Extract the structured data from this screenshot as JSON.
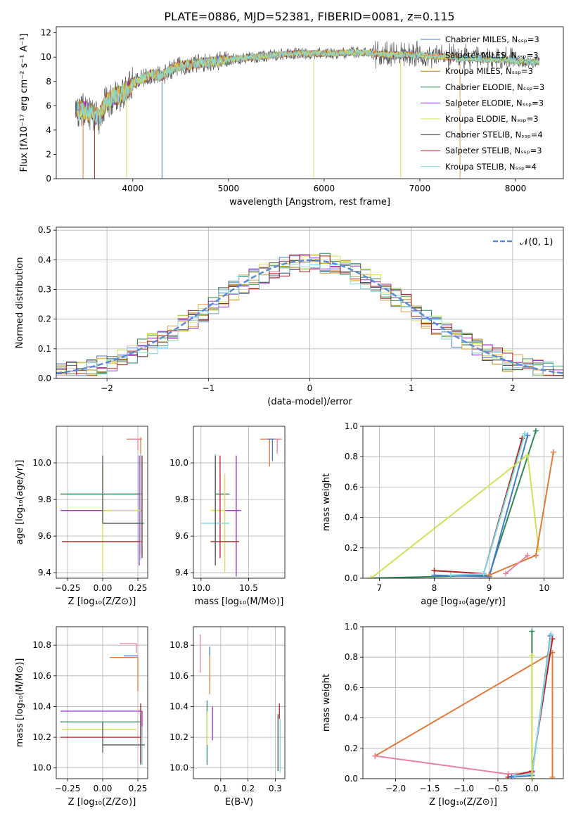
{
  "figure_title": "PLATE=0886, MJD=52381, FIBERID=0081, z=0.115",
  "colors": {
    "chabrier_miles": "#4878cf",
    "salpeter_miles": "#e3a04e",
    "kroupa_miles": "#b8860b",
    "chabrier_elodie": "#2e8b57",
    "salpeter_elodie": "#9932cc",
    "kroupa_elodie": "#d4e157",
    "chabrier_stelib": "#555555",
    "salpeter_stelib": "#b22222",
    "kroupa_stelib": "#7fd8e0",
    "gauss": "#5b8bd6",
    "orange": "#e07b39",
    "pink": "#e8839e"
  },
  "chart_data": [
    {
      "id": "spectrum",
      "type": "line",
      "xlabel": "wavelength [Angstrom, rest frame]",
      "ylabel": "Flux [fλ10⁻¹⁷ erg cm⁻² s⁻¹ A⁻¹]",
      "xlim": [
        3200,
        8500
      ],
      "ylim": [
        0,
        12.5
      ],
      "xticks": [
        4000,
        5000,
        6000,
        7000,
        8000
      ],
      "yticks": [
        0,
        2,
        4,
        6,
        8,
        10,
        12
      ],
      "grid": false,
      "legend_position": "right",
      "continuum": {
        "x": [
          3400,
          3500,
          3600,
          3650,
          3700,
          3800,
          3900,
          4000,
          4100,
          4200,
          4300,
          4400,
          4500,
          4700,
          4900,
          5100,
          5300,
          5500,
          5700,
          5900,
          6100,
          6300,
          6500,
          6700,
          6900,
          7100,
          7300,
          7500,
          7700,
          7900,
          8100,
          8250
        ],
        "y": [
          5.7,
          5.6,
          5.3,
          5.0,
          6.1,
          6.8,
          7.0,
          7.8,
          8.2,
          8.6,
          8.4,
          9.0,
          9.3,
          9.5,
          9.7,
          9.9,
          10.0,
          10.2,
          10.3,
          10.3,
          10.3,
          10.4,
          10.3,
          10.2,
          10.2,
          10.1,
          10.0,
          9.9,
          9.8,
          9.8,
          9.6,
          9.6
        ]
      },
      "legend": [
        {
          "label": "Chabrier MILES, Nₛₛₚ=3",
          "color": "#4878cf"
        },
        {
          "label": "Salpeter MILES, Nₛₛₚ=3",
          "color": "#e3a04e"
        },
        {
          "label": "Kroupa MILES, Nₛₛₚ=3",
          "color": "#b8860b"
        },
        {
          "label": "Chabrier ELODIE, Nₛₛₚ=3",
          "color": "#2e8b57"
        },
        {
          "label": "Salpeter ELODIE, Nₛₛₚ=3",
          "color": "#9932cc"
        },
        {
          "label": "Kroupa ELODIE, Nₛₛₚ=3",
          "color": "#d4e157"
        },
        {
          "label": "Chabrier STELIB, Nₛₛₚ=4",
          "color": "#555555"
        },
        {
          "label": "Salpeter STELIB, Nₛₛₚ=3",
          "color": "#b22222"
        },
        {
          "label": "Kroupa STELIB, Nₛₛₚ=4",
          "color": "#7fd8e0"
        }
      ]
    },
    {
      "id": "residuals",
      "type": "line",
      "xlabel": "(data-model)/error",
      "ylabel": "Normed distribution",
      "xlim": [
        -2.5,
        2.5
      ],
      "ylim": [
        0,
        0.51
      ],
      "xticks": [
        -2,
        -1,
        0,
        1,
        2
      ],
      "yticks": [
        0.0,
        0.1,
        0.2,
        0.3,
        0.4,
        0.5
      ],
      "grid": true,
      "legend_position": "top-right",
      "gauss_label": "𝒩(0, 1)",
      "bin_width": 0.1
    },
    {
      "id": "age_vs_Z",
      "type": "scatter",
      "xlabel": "Z [log₁₀(Z/Z⊙)]",
      "ylabel": "age  [log₁₀(age/yr)]",
      "xlim": [
        -0.33,
        0.32
      ],
      "ylim": [
        9.37,
        10.2
      ],
      "xticks": [
        -0.25,
        0.0,
        0.25
      ],
      "yticks": [
        9.4,
        9.6,
        9.8,
        10.0
      ],
      "grid": true,
      "points": [
        {
          "x": 0.27,
          "y": 10.13,
          "xerr": [
            0.1,
            0.01
          ],
          "yerr": [
            0.15,
            0.01
          ],
          "color": "#e07b39"
        },
        {
          "x": 0.25,
          "y": 10.13,
          "xerr": [
            0.06,
            0.02
          ],
          "yerr": [
            0.06,
            0.0
          ],
          "color": "#e8839e"
        },
        {
          "x": 0.27,
          "y": 9.83,
          "xerr": [
            0.57,
            0.01
          ],
          "yerr": [
            0.33,
            0.2
          ],
          "color": "#2e8b57"
        },
        {
          "x": 0.26,
          "y": 9.74,
          "xerr": [
            0.56,
            0.02
          ],
          "yerr": [
            0.3,
            0.3
          ],
          "color": "#9932cc"
        },
        {
          "x": 0.0,
          "y": 9.74,
          "xerr": [
            0.0,
            0.27
          ],
          "yerr": [
            0.34,
            0.25
          ],
          "color": "#d4e157"
        },
        {
          "x": 0.28,
          "y": 9.57,
          "xerr": [
            0.57,
            0.0
          ],
          "yerr": [
            0.09,
            0.47
          ],
          "color": "#b22222"
        },
        {
          "x": 0.27,
          "y": 9.67,
          "xerr": [
            0.27,
            0.03
          ],
          "yerr": [
            0.2,
            0.38
          ],
          "color": "#7fd8e0"
        },
        {
          "x": 0.0,
          "y": 9.67,
          "xerr": [
            0.0,
            0.29
          ],
          "yerr": [
            0.0,
            0.37
          ],
          "color": "#555555"
        }
      ]
    },
    {
      "id": "age_vs_mass",
      "type": "scatter",
      "xlabel": "mass [log₁₀(M/M⊙)]",
      "ylabel": "",
      "xlim": [
        9.92,
        10.88
      ],
      "ylim": [
        9.37,
        10.2
      ],
      "xticks": [
        10.0,
        10.5
      ],
      "yticks": [
        9.4,
        9.6,
        9.8,
        10.0
      ],
      "grid": true,
      "points": [
        {
          "x": 10.72,
          "y": 10.13,
          "xerr": [
            0.1,
            0.1
          ],
          "yerr": [
            0.15,
            0.0
          ],
          "color": "#e07b39"
        },
        {
          "x": 10.8,
          "y": 10.13,
          "xerr": [
            0.05,
            0.05
          ],
          "yerr": [
            0.08,
            0.0
          ],
          "color": "#e8839e"
        },
        {
          "x": 10.75,
          "y": 10.13,
          "xerr": [
            0.05,
            0.02
          ],
          "yerr": [
            0.12,
            0.0
          ],
          "color": "#4878cf"
        },
        {
          "x": 10.15,
          "y": 9.83,
          "xerr": [
            0.0,
            0.15
          ],
          "yerr": [
            0.33,
            0.2
          ],
          "color": "#2e8b57"
        },
        {
          "x": 10.37,
          "y": 9.74,
          "xerr": [
            0.12,
            0.05
          ],
          "yerr": [
            0.36,
            0.3
          ],
          "color": "#9932cc"
        },
        {
          "x": 10.25,
          "y": 9.74,
          "xerr": [
            0.15,
            0.0
          ],
          "yerr": [
            0.34,
            0.2
          ],
          "color": "#d4e157"
        },
        {
          "x": 10.2,
          "y": 9.57,
          "xerr": [
            0.1,
            0.2
          ],
          "yerr": [
            0.09,
            0.47
          ],
          "color": "#b22222"
        },
        {
          "x": 10.15,
          "y": 9.67,
          "xerr": [
            0.15,
            0.15
          ],
          "yerr": [
            0.2,
            0.38
          ],
          "color": "#7fd8e0"
        },
        {
          "x": 10.15,
          "y": 9.74,
          "xerr": [
            0.0,
            0.0
          ],
          "yerr": [
            0.3,
            0.3
          ],
          "color": "#555555"
        }
      ]
    },
    {
      "id": "mass_weight_vs_age",
      "type": "line",
      "xlabel": "age  [log₁₀(age/yr)]",
      "ylabel": "mass weight",
      "xlim": [
        6.7,
        10.35
      ],
      "ylim": [
        0,
        1.0
      ],
      "xticks": [
        7,
        8,
        9,
        10
      ],
      "yticks": [
        0.0,
        0.2,
        0.4,
        0.6,
        0.8,
        1.0
      ],
      "grid": true,
      "series": [
        {
          "color": "#2e8b57",
          "x": [
            6.85,
            9.0,
            9.85
          ],
          "y": [
            0.0,
            0.02,
            0.97
          ]
        },
        {
          "color": "#b22222",
          "x": [
            8.0,
            8.9,
            9.6
          ],
          "y": [
            0.05,
            0.03,
            0.92
          ]
        },
        {
          "color": "#4878cf",
          "x": [
            8.0,
            9.0,
            9.7
          ],
          "y": [
            0.02,
            0.01,
            0.94
          ]
        },
        {
          "color": "#7fd8e0",
          "x": [
            8.3,
            8.9,
            9.65
          ],
          "y": [
            0.02,
            0.03,
            0.95
          ]
        },
        {
          "color": "#d4e157",
          "x": [
            6.85,
            9.7,
            9.9
          ],
          "y": [
            0.0,
            0.81,
            0.19
          ]
        },
        {
          "color": "#e07b39",
          "x": [
            9.0,
            9.85,
            10.17
          ],
          "y": [
            0.02,
            0.15,
            0.83
          ]
        },
        {
          "color": "#e8839e",
          "x": [
            9.3,
            9.7
          ],
          "y": [
            0.03,
            0.15
          ]
        }
      ]
    },
    {
      "id": "mass_vs_Z",
      "type": "scatter",
      "xlabel": "Z [log₁₀(Z/Z⊙)]",
      "ylabel": "mass [log₁₀(M/M⊙)]",
      "xlim": [
        -0.33,
        0.32
      ],
      "ylim": [
        9.93,
        10.92
      ],
      "xticks": [
        -0.25,
        0.0,
        0.25
      ],
      "yticks": [
        10.0,
        10.2,
        10.4,
        10.6,
        10.8
      ],
      "grid": true,
      "points": [
        {
          "x": 0.24,
          "y": 10.81,
          "xerr": [
            0.12,
            0.0
          ],
          "yerr": [
            0.06,
            0.0
          ],
          "color": "#e8839e"
        },
        {
          "x": 0.25,
          "y": 10.72,
          "xerr": [
            0.2,
            0.0
          ],
          "yerr": [
            0.22,
            0.0
          ],
          "color": "#e07b39"
        },
        {
          "x": 0.25,
          "y": 10.73,
          "xerr": [
            0.1,
            0.0
          ],
          "yerr": [
            0.0,
            0.0
          ],
          "color": "#4878cf"
        },
        {
          "x": 0.28,
          "y": 10.37,
          "xerr": [
            0.58,
            0.0
          ],
          "yerr": [
            0.17,
            0.0
          ],
          "color": "#9932cc"
        },
        {
          "x": 0.27,
          "y": 10.3,
          "xerr": [
            0.57,
            0.0
          ],
          "yerr": [
            0.28,
            0.05
          ],
          "color": "#2e8b57"
        },
        {
          "x": 0.24,
          "y": 10.25,
          "xerr": [
            0.53,
            0.0
          ],
          "yerr": [
            0.0,
            0.0
          ],
          "color": "#d4e157"
        },
        {
          "x": 0.27,
          "y": 10.2,
          "xerr": [
            0.57,
            0.0
          ],
          "yerr": [
            0.17,
            0.22
          ],
          "color": "#b22222"
        },
        {
          "x": 0.28,
          "y": 10.15,
          "xerr": [
            0.28,
            0.0
          ],
          "yerr": [
            0.13,
            0.12
          ],
          "color": "#7fd8e0"
        },
        {
          "x": 0.0,
          "y": 10.15,
          "xerr": [
            0.0,
            0.3
          ],
          "yerr": [
            0.05,
            0.15
          ],
          "color": "#555555"
        }
      ]
    },
    {
      "id": "mass_vs_EBV",
      "type": "scatter",
      "xlabel": "E(B-V)",
      "ylabel": "",
      "xlim": [
        0.0,
        0.335
      ],
      "ylim": [
        9.93,
        10.92
      ],
      "xticks": [
        0.1,
        0.2,
        0.3
      ],
      "yticks": [
        10.0,
        10.2,
        10.4,
        10.6,
        10.8
      ],
      "grid": true,
      "points": [
        {
          "x": 0.025,
          "y": 10.74,
          "yerr": [
            0.12,
            0.13
          ],
          "color": "#e8839e"
        },
        {
          "x": 0.06,
          "y": 10.63,
          "yerr": [
            0.15,
            0.12
          ],
          "color": "#e07b39"
        },
        {
          "x": 0.06,
          "y": 10.73,
          "yerr": [
            0.0,
            0.06
          ],
          "color": "#4878cf"
        },
        {
          "x": 0.05,
          "y": 10.24,
          "yerr": [
            0.22,
            0.2
          ],
          "color": "#2e8b57"
        },
        {
          "x": 0.07,
          "y": 10.29,
          "yerr": [
            0.11,
            0.11
          ],
          "color": "#9932cc"
        },
        {
          "x": 0.05,
          "y": 10.2,
          "yerr": [
            0.05,
            0.17
          ],
          "color": "#d4e157"
        },
        {
          "x": 0.315,
          "y": 10.32,
          "yerr": [
            0.0,
            0.1
          ],
          "color": "#b22222"
        },
        {
          "x": 0.318,
          "y": 10.15,
          "yerr": [
            0.18,
            0.17
          ],
          "color": "#7fd8e0"
        },
        {
          "x": 0.31,
          "y": 10.18,
          "yerr": [
            0.2,
            0.17
          ],
          "color": "#555555"
        }
      ]
    },
    {
      "id": "mass_weight_vs_Z",
      "type": "line",
      "xlabel": "Z [log₁₀(Z/Z⊙)]",
      "ylabel": "mass weight",
      "xlim": [
        -2.48,
        0.46
      ],
      "ylim": [
        0,
        1.0
      ],
      "xticks": [
        -2.0,
        -1.5,
        -1.0,
        -0.5,
        0.0
      ],
      "yticks": [
        0.0,
        0.2,
        0.4,
        0.6,
        0.8,
        1.0
      ],
      "grid": true,
      "series": [
        {
          "color": "#e07b39",
          "x": [
            -2.3,
            0.3,
            0.3
          ],
          "y": [
            0.15,
            0.83,
            0.01
          ]
        },
        {
          "color": "#e8839e",
          "x": [
            -2.3,
            -0.35,
            0.0
          ],
          "y": [
            0.15,
            0.03,
            0.04
          ]
        },
        {
          "color": "#b22222",
          "x": [
            -0.35,
            0.0,
            0.3
          ],
          "y": [
            0.01,
            0.05,
            0.92
          ]
        },
        {
          "color": "#4878cf",
          "x": [
            -0.3,
            0.0,
            0.27
          ],
          "y": [
            0.01,
            0.02,
            0.94
          ]
        },
        {
          "color": "#7fd8e0",
          "x": [
            -0.25,
            0.0,
            0.28
          ],
          "y": [
            0.02,
            0.03,
            0.95
          ]
        },
        {
          "color": "#2e8b57",
          "x": [
            0.0,
            0.0
          ],
          "y": [
            0.0,
            0.97
          ]
        },
        {
          "color": "#d4e157",
          "x": [
            0.0,
            0.0
          ],
          "y": [
            0.0,
            0.81
          ]
        }
      ]
    }
  ]
}
